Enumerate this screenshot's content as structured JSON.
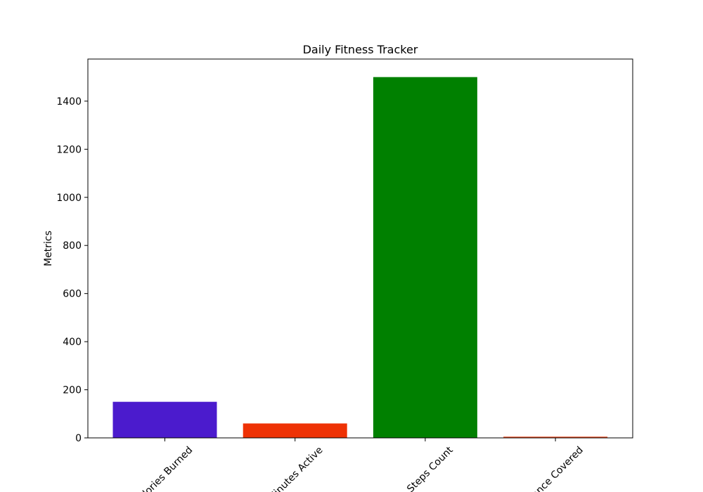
{
  "chart_data": {
    "type": "bar",
    "title": "Daily Fitness Tracker",
    "xlabel": "",
    "ylabel": "Metrics",
    "categories": [
      "Calories Burned",
      "Minutes Active",
      "Steps Count",
      "Distance Covered"
    ],
    "values": [
      150,
      60,
      1500,
      5
    ],
    "colors": [
      "#4b1bcd",
      "#ee3205",
      "#008000",
      "#e8471e"
    ],
    "ylim": [
      0,
      1575
    ],
    "yticks": [
      0,
      200,
      400,
      600,
      800,
      1000,
      1200,
      1400
    ],
    "ytick_labels": [
      "0",
      "200",
      "400",
      "600",
      "800",
      "1000",
      "1200",
      "1400"
    ],
    "grid": false,
    "xtick_rotation_deg": 45
  }
}
